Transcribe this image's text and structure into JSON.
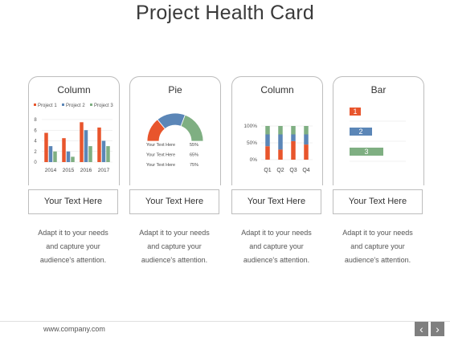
{
  "title": "Project Health Card",
  "colors": {
    "orange": "#E8552C",
    "blue": "#5B86B7",
    "green": "#7FAF82",
    "grid": "#e3e3e3"
  },
  "cards": [
    {
      "title": "Column",
      "chart_data": {
        "type": "bar",
        "categories": [
          "2014",
          "2015",
          "2016",
          "2017"
        ],
        "series": [
          {
            "name": "Project 1",
            "values": [
              5.5,
              4.5,
              7.5,
              6.5
            ]
          },
          {
            "name": "Project 2",
            "values": [
              3.0,
              2.0,
              6.0,
              4.0
            ]
          },
          {
            "name": "Project 3",
            "values": [
              2.0,
              1.0,
              3.0,
              3.0
            ]
          }
        ],
        "ylim": [
          0,
          8
        ],
        "yticks": [
          "0",
          "2",
          "4",
          "6",
          "8"
        ],
        "legend": "top"
      }
    },
    {
      "title": "Pie",
      "chart_data": {
        "type": "pie",
        "style": "half-doughnut",
        "slices": [
          {
            "name": "Your Text Here",
            "value": 55,
            "label": "55%"
          },
          {
            "name": "Your Text Here",
            "value": 65,
            "label": "65%"
          },
          {
            "name": "Your Text Here",
            "value": 75,
            "label": "75%"
          }
        ]
      }
    },
    {
      "title": "Column",
      "chart_data": {
        "type": "bar",
        "stacked_percent": true,
        "categories": [
          "Q1",
          "Q2",
          "Q3",
          "Q4"
        ],
        "series": [
          {
            "name": "orange",
            "values": [
              40,
              30,
              55,
              45
            ]
          },
          {
            "name": "blue",
            "values": [
              35,
              45,
              20,
              30
            ]
          },
          {
            "name": "green",
            "values": [
              25,
              25,
              25,
              25
            ]
          }
        ],
        "yticks": [
          "0%",
          "50%",
          "100%"
        ]
      }
    },
    {
      "title": "Bar",
      "chart_data": {
        "type": "bar",
        "orientation": "horizontal",
        "categories": [
          "1",
          "2",
          "3"
        ],
        "values": [
          1,
          2,
          3
        ]
      }
    }
  ],
  "text_boxes": [
    "Your Text Here",
    "Your Text Here",
    "Your Text Here",
    "Your Text Here"
  ],
  "descriptions": [
    [
      "Adapt it to your needs",
      "and capture your",
      "audience's attention."
    ],
    [
      "Adapt it to your needs",
      "and capture your",
      "audience's attention."
    ],
    [
      "Adapt it to your needs",
      "and capture your",
      "audience's attention."
    ],
    [
      "Adapt it to your needs",
      "and capture your",
      "audience's attention."
    ]
  ],
  "footer": {
    "url": "www.company.com",
    "prev_icon": "chevron-left-icon",
    "next_icon": "chevron-right-icon"
  }
}
